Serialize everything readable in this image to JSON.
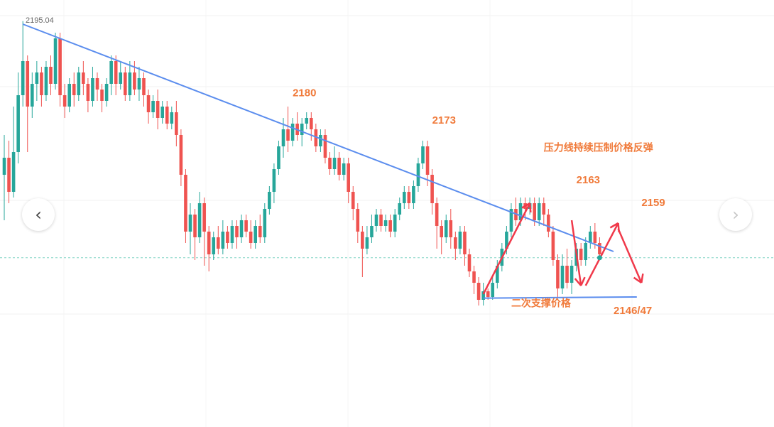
{
  "nav": {
    "prev_icon": "‹",
    "next_icon": "›"
  },
  "chart_data": {
    "type": "candlestick",
    "title": "",
    "xlabel": "",
    "ylabel": "",
    "ylim": [
      2136,
      2196
    ],
    "grid": true,
    "colors": {
      "up": "#26a69a",
      "down": "#ef5350",
      "trendline": "#5b8dee",
      "arrow": "#f0394a",
      "annotation": "#f07a3a",
      "current_price_line": "#7fd3c4"
    },
    "high_marker": {
      "label": "2195.04",
      "value": 2195.04
    },
    "current_price": 2153.4,
    "candles": [
      [
        2168,
        2171,
        2160,
        2175
      ],
      [
        2171,
        2165,
        2163,
        2174
      ],
      [
        2165,
        2172,
        2164,
        2180
      ],
      [
        2172,
        2182,
        2170,
        2186
      ],
      [
        2182,
        2188,
        2180,
        2195.04
      ],
      [
        2188,
        2180,
        2172,
        2189
      ],
      [
        2180,
        2184,
        2178,
        2186
      ],
      [
        2184,
        2186,
        2181,
        2188
      ],
      [
        2186,
        2182,
        2180,
        2187
      ],
      [
        2182,
        2187,
        2181,
        2188
      ],
      [
        2187,
        2184,
        2182,
        2189
      ],
      [
        2184,
        2192,
        2183,
        2193
      ],
      [
        2192,
        2182,
        2180,
        2193
      ],
      [
        2182,
        2180,
        2178,
        2184
      ],
      [
        2180,
        2184,
        2179,
        2185
      ],
      [
        2184,
        2182,
        2180,
        2186
      ],
      [
        2182,
        2186,
        2181,
        2187
      ],
      [
        2186,
        2184,
        2182,
        2188
      ],
      [
        2184,
        2181,
        2179,
        2185
      ],
      [
        2181,
        2185,
        2180,
        2187
      ],
      [
        2185,
        2183,
        2181,
        2186
      ],
      [
        2183,
        2181,
        2179,
        2184
      ],
      [
        2181,
        2184,
        2180,
        2185
      ],
      [
        2184,
        2188,
        2182,
        2189
      ],
      [
        2188,
        2184,
        2182,
        2189
      ],
      [
        2184,
        2186,
        2183,
        2188
      ],
      [
        2186,
        2182,
        2181,
        2187
      ],
      [
        2182,
        2186,
        2181,
        2188
      ],
      [
        2186,
        2183,
        2182,
        2188
      ],
      [
        2183,
        2185,
        2181,
        2187
      ],
      [
        2185,
        2182,
        2180,
        2186
      ],
      [
        2182,
        2179,
        2177,
        2183
      ],
      [
        2179,
        2181,
        2178,
        2182
      ],
      [
        2181,
        2178,
        2176,
        2183
      ],
      [
        2178,
        2180,
        2177,
        2181
      ],
      [
        2180,
        2177,
        2176,
        2181
      ],
      [
        2177,
        2179,
        2176,
        2180
      ],
      [
        2179,
        2175,
        2173,
        2181
      ],
      [
        2175,
        2168,
        2166,
        2176
      ],
      [
        2168,
        2158,
        2156,
        2169
      ],
      [
        2158,
        2161,
        2154,
        2163
      ],
      [
        2161,
        2157,
        2153,
        2162
      ],
      [
        2157,
        2163,
        2156,
        2165
      ],
      [
        2163,
        2158,
        2152,
        2164
      ],
      [
        2158,
        2154,
        2151,
        2159
      ],
      [
        2154,
        2157,
        2153,
        2158
      ],
      [
        2157,
        2155,
        2154,
        2159
      ],
      [
        2155,
        2158,
        2154,
        2160
      ],
      [
        2158,
        2156,
        2155,
        2159
      ],
      [
        2156,
        2159,
        2155,
        2160
      ],
      [
        2159,
        2157,
        2155,
        2160
      ],
      [
        2157,
        2160,
        2156,
        2161
      ],
      [
        2160,
        2158,
        2157,
        2161
      ],
      [
        2158,
        2156,
        2155,
        2160
      ],
      [
        2156,
        2159,
        2155,
        2160
      ],
      [
        2159,
        2157,
        2156,
        2161
      ],
      [
        2157,
        2162,
        2156,
        2163
      ],
      [
        2162,
        2165,
        2161,
        2166
      ],
      [
        2165,
        2169,
        2163,
        2170
      ],
      [
        2169,
        2173,
        2168,
        2174
      ],
      [
        2173,
        2176,
        2171,
        2178
      ],
      [
        2176,
        2174,
        2172,
        2180
      ],
      [
        2174,
        2177,
        2173,
        2178
      ],
      [
        2177,
        2175,
        2174,
        2179
      ],
      [
        2175,
        2177,
        2173,
        2178
      ],
      [
        2177,
        2178,
        2176,
        2179
      ],
      [
        2178,
        2176,
        2174,
        2179
      ],
      [
        2176,
        2173,
        2172,
        2177
      ],
      [
        2173,
        2175,
        2172,
        2176
      ],
      [
        2175,
        2171,
        2170,
        2176
      ],
      [
        2171,
        2169,
        2168,
        2172
      ],
      [
        2169,
        2171,
        2168,
        2173
      ],
      [
        2171,
        2168,
        2167,
        2172
      ],
      [
        2168,
        2170,
        2167,
        2171
      ],
      [
        2170,
        2165,
        2163,
        2171
      ],
      [
        2165,
        2162,
        2160,
        2166
      ],
      [
        2162,
        2158,
        2156,
        2163
      ],
      [
        2158,
        2155,
        2150,
        2159
      ],
      [
        2155,
        2157,
        2154,
        2159
      ],
      [
        2157,
        2159,
        2156,
        2161
      ],
      [
        2159,
        2161,
        2158,
        2162
      ],
      [
        2161,
        2159,
        2158,
        2162
      ],
      [
        2159,
        2160,
        2158,
        2161
      ],
      [
        2160,
        2158,
        2157,
        2161
      ],
      [
        2158,
        2161,
        2157,
        2162
      ],
      [
        2161,
        2163,
        2160,
        2164
      ],
      [
        2163,
        2165,
        2162,
        2166
      ],
      [
        2165,
        2163,
        2162,
        2166
      ],
      [
        2163,
        2166,
        2162,
        2167
      ],
      [
        2166,
        2170,
        2165,
        2171
      ],
      [
        2170,
        2173,
        2169,
        2174
      ],
      [
        2173,
        2168,
        2166,
        2174
      ],
      [
        2168,
        2163,
        2161,
        2169
      ],
      [
        2163,
        2159,
        2155,
        2164
      ],
      [
        2159,
        2157,
        2154,
        2160
      ],
      [
        2157,
        2160,
        2156,
        2161
      ],
      [
        2160,
        2157,
        2155,
        2162
      ],
      [
        2157,
        2155,
        2153,
        2158
      ],
      [
        2155,
        2158,
        2154,
        2159
      ],
      [
        2158,
        2154,
        2152,
        2159
      ],
      [
        2154,
        2151,
        2150,
        2155
      ],
      [
        2151,
        2149,
        2147,
        2152
      ],
      [
        2149,
        2146,
        2145,
        2150
      ],
      [
        2146,
        2147.5,
        2145,
        2149
      ],
      [
        2147.5,
        2146.5,
        2146,
        2148
      ],
      [
        2146.5,
        2149,
        2146,
        2150
      ],
      [
        2149,
        2152,
        2148,
        2153
      ],
      [
        2152,
        2155,
        2151,
        2156
      ],
      [
        2155,
        2158,
        2154,
        2159
      ],
      [
        2158,
        2162,
        2157,
        2163
      ],
      [
        2162,
        2160,
        2159,
        2164
      ],
      [
        2160,
        2163,
        2159,
        2164
      ],
      [
        2163,
        2162,
        2160,
        2164
      ],
      [
        2162,
        2163,
        2161,
        2164
      ],
      [
        2163,
        2160,
        2159,
        2164
      ],
      [
        2160,
        2163,
        2159,
        2164
      ],
      [
        2163,
        2161,
        2159,
        2164
      ],
      [
        2161,
        2158,
        2157,
        2162
      ],
      [
        2158,
        2153,
        2152,
        2159
      ],
      [
        2153,
        2148,
        2146.5,
        2154
      ],
      [
        2148,
        2152,
        2147,
        2154
      ],
      [
        2152,
        2149,
        2148,
        2155
      ],
      [
        2149,
        2152,
        2147,
        2153
      ],
      [
        2152,
        2155,
        2151,
        2156
      ],
      [
        2155,
        2153,
        2152,
        2156
      ],
      [
        2153,
        2156,
        2152,
        2157
      ],
      [
        2156,
        2158,
        2155,
        2159
      ],
      [
        2158,
        2156,
        2155,
        2159.5
      ],
      [
        2156,
        2154,
        2153,
        2157
      ]
    ],
    "trendlines": [
      {
        "name": "resistance",
        "from": {
          "i": 4,
          "v": 2194.5
        },
        "to": {
          "i": 131,
          "v": 2154.5
        }
      },
      {
        "name": "support",
        "from": {
          "i": 103,
          "v": 2146.3
        },
        "to": {
          "i": 136,
          "v": 2146.5
        }
      }
    ],
    "arrows": [
      {
        "from": {
          "i": 103,
          "v": 2147
        },
        "to": {
          "i": 113,
          "v": 2163
        }
      },
      {
        "from": {
          "i": 122,
          "v": 2160
        },
        "to": {
          "i": 124,
          "v": 2148.5
        }
      },
      {
        "from": {
          "i": 125,
          "v": 2148.5
        },
        "to": {
          "i": 132,
          "v": 2159.5
        }
      },
      {
        "from": {
          "i": 132,
          "v": 2158.5
        },
        "to": {
          "i": 137,
          "v": 2149
        }
      }
    ],
    "price_labels": [
      {
        "text": "2180",
        "i": 62,
        "v": 2181.8
      },
      {
        "text": "2173",
        "i": 92,
        "v": 2177
      },
      {
        "text": "2163",
        "i": 123,
        "v": 2166.5
      },
      {
        "text": "2159",
        "i": 137,
        "v": 2162.5
      },
      {
        "text": "2146/47",
        "i": 131,
        "v": 2143.5
      }
    ],
    "annotations": [
      {
        "text": "压力线持续压制价格反弹",
        "i": 116,
        "v": 2172.2
      },
      {
        "text": "二次支撑价格",
        "i": 109,
        "v": 2144.8
      }
    ]
  }
}
